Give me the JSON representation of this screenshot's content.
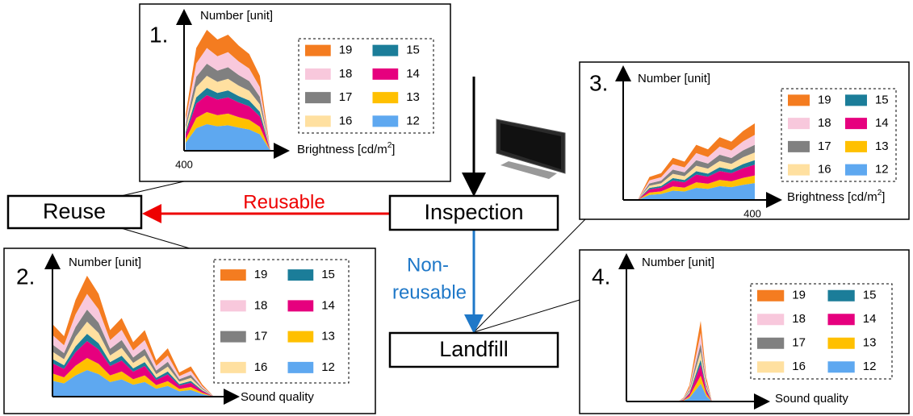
{
  "flow": {
    "reuse": "Reuse",
    "inspection": "Inspection",
    "landfill": "Landfill",
    "reusable": "Reusable",
    "non_reusable": [
      "Non-",
      "reusable"
    ]
  },
  "legend": [
    {
      "label": "19",
      "color": "#f47c20"
    },
    {
      "label": "15",
      "color": "#1b7d99"
    },
    {
      "label": "18",
      "color": "#f8c8dc"
    },
    {
      "label": "14",
      "color": "#e6007e"
    },
    {
      "label": "17",
      "color": "#808080"
    },
    {
      "label": "13",
      "color": "#ffc000"
    },
    {
      "label": "16",
      "color": "#ffe0a0"
    },
    {
      "label": "12",
      "color": "#5ea8f0"
    }
  ],
  "panels": [
    {
      "number": "1.",
      "y_label": "Number [unit]",
      "x_label": [
        "Brightness [cd/m",
        "2",
        "]"
      ],
      "x_tick": "400"
    },
    {
      "number": "2.",
      "y_label": "Number [unit]",
      "x_label": [
        "Sound quality"
      ]
    },
    {
      "number": "3.",
      "y_label": "Number [unit]",
      "x_label": [
        "Brightness [cd/m",
        "2",
        "]"
      ],
      "x_tick": "400"
    },
    {
      "number": "4.",
      "y_label": "Number [unit]",
      "x_label": [
        "Sound quality"
      ]
    }
  ]
}
